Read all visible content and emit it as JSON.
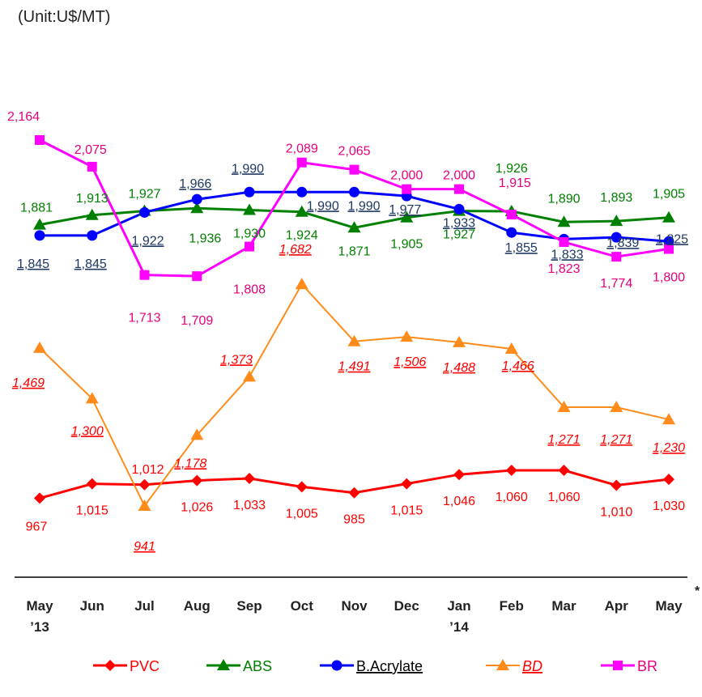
{
  "unit_label": "(Unit:U$/MT)",
  "footnote": "*",
  "chart_data": {
    "type": "line",
    "categories": [
      "May",
      "Jun",
      "Jul",
      "Aug",
      "Sep",
      "Oct",
      "Nov",
      "Dec",
      "Jan",
      "Feb",
      "Mar",
      "Apr",
      "May"
    ],
    "category_sublabels": [
      "’13",
      "",
      "",
      "",
      "",
      "",
      "",
      "",
      "’14",
      "",
      "",
      "",
      ""
    ],
    "title": "",
    "xlabel": "",
    "ylabel": "",
    "ylim": [
      900,
      2200
    ],
    "grid": false,
    "legend": "bottom",
    "series": [
      {
        "name": "PVC",
        "color": "#ff0000",
        "marker": "diamond",
        "label_style": "plain",
        "values": [
          967,
          1015,
          1012,
          1026,
          1033,
          1005,
          985,
          1015,
          1046,
          1060,
          1060,
          1010,
          1030
        ]
      },
      {
        "name": "ABS",
        "color": "#008000",
        "marker": "triangle",
        "label_style": "plain",
        "values": [
          1881,
          1913,
          1927,
          1936,
          1930,
          1924,
          1871,
          1905,
          1927,
          1926,
          1890,
          1893,
          1905
        ]
      },
      {
        "name": "B.Acrylate",
        "color": "#0000ff",
        "label_color": "#1f3864",
        "marker": "circle",
        "label_style": "underline",
        "values": [
          1845,
          1845,
          1922,
          1966,
          1990,
          1990,
          1990,
          1977,
          1933,
          1855,
          1833,
          1839,
          1825
        ]
      },
      {
        "name": "BD",
        "color": "#ff8c1a",
        "label_color": "#ff0000",
        "marker": "triangle",
        "label_style": "italic-underline",
        "values": [
          1469,
          1300,
          941,
          1178,
          1373,
          1682,
          1491,
          1506,
          1488,
          1466,
          1271,
          1271,
          1230
        ]
      },
      {
        "name": "BR",
        "color": "#ff00ff",
        "label_color": "#e6007e",
        "marker": "square",
        "label_style": "plain",
        "values": [
          2164,
          2075,
          1713,
          1709,
          1808,
          2089,
          2065,
          2000,
          2000,
          1915,
          1823,
          1774,
          1800
        ]
      }
    ]
  }
}
